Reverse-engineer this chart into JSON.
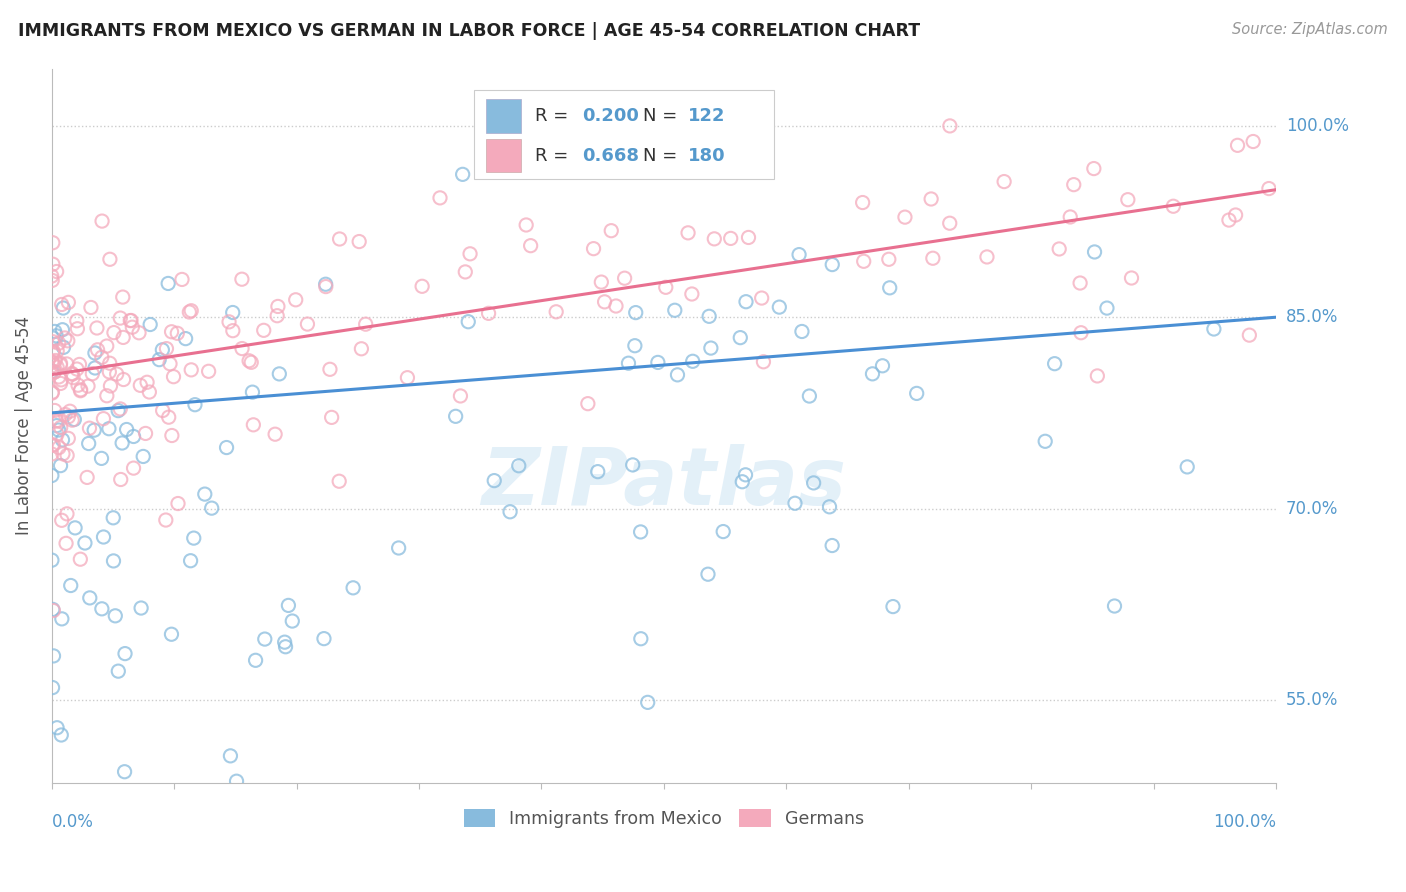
{
  "title": "IMMIGRANTS FROM MEXICO VS GERMAN IN LABOR FORCE | AGE 45-54 CORRELATION CHART",
  "source": "Source: ZipAtlas.com",
  "ylabel": "In Labor Force | Age 45-54",
  "ytick_labels": [
    "55.0%",
    "70.0%",
    "85.0%",
    "100.0%"
  ],
  "ytick_values": [
    0.55,
    0.7,
    0.85,
    1.0
  ],
  "legend_blue_R": "0.200",
  "legend_blue_N": "122",
  "legend_pink_R": "0.668",
  "legend_pink_N": "180",
  "legend_item1": "Immigrants from Mexico",
  "legend_item2": "Germans",
  "blue_color": "#88BBDD",
  "pink_color": "#F4AABC",
  "line_blue": "#4A8FD4",
  "line_pink": "#E87090",
  "title_color": "#222222",
  "axis_color": "#5599CC",
  "background_color": "#FFFFFF",
  "blue_line_intercept": 0.775,
  "blue_line_slope": 0.075,
  "pink_line_intercept": 0.805,
  "pink_line_slope": 0.145
}
